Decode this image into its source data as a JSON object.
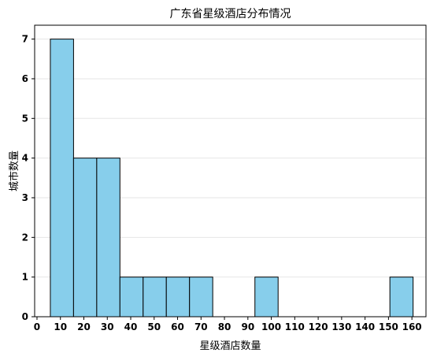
{
  "chart_data": {
    "type": "bar",
    "title": "广东省星级酒店分布情况",
    "xlabel": "星级酒店数量",
    "ylabel": "城市数量",
    "bins": [
      {
        "x0": 5.7,
        "x1": 15.6,
        "value": 7
      },
      {
        "x0": 15.6,
        "x1": 25.5,
        "value": 4
      },
      {
        "x0": 25.5,
        "x1": 35.4,
        "value": 4
      },
      {
        "x0": 35.4,
        "x1": 45.3,
        "value": 1
      },
      {
        "x0": 45.3,
        "x1": 55.2,
        "value": 1
      },
      {
        "x0": 55.2,
        "x1": 65.1,
        "value": 1
      },
      {
        "x0": 65.1,
        "x1": 75.0,
        "value": 1
      },
      {
        "x0": 93.0,
        "x1": 102.9,
        "value": 1
      },
      {
        "x0": 150.6,
        "x1": 160.5,
        "value": 1
      }
    ],
    "xticks": [
      "0",
      "10",
      "20",
      "30",
      "40",
      "50",
      "60",
      "70",
      "80",
      "90",
      "100",
      "110",
      "120",
      "130",
      "140",
      "150",
      "160"
    ],
    "yticks": [
      "0",
      "1",
      "2",
      "3",
      "4",
      "5",
      "6",
      "7"
    ],
    "xlim": [
      -1,
      166
    ],
    "ylim": [
      0,
      7.35
    ],
    "bar_color": "#87ceeb",
    "edge_color": "#000000",
    "grid": "horizontal, light"
  }
}
